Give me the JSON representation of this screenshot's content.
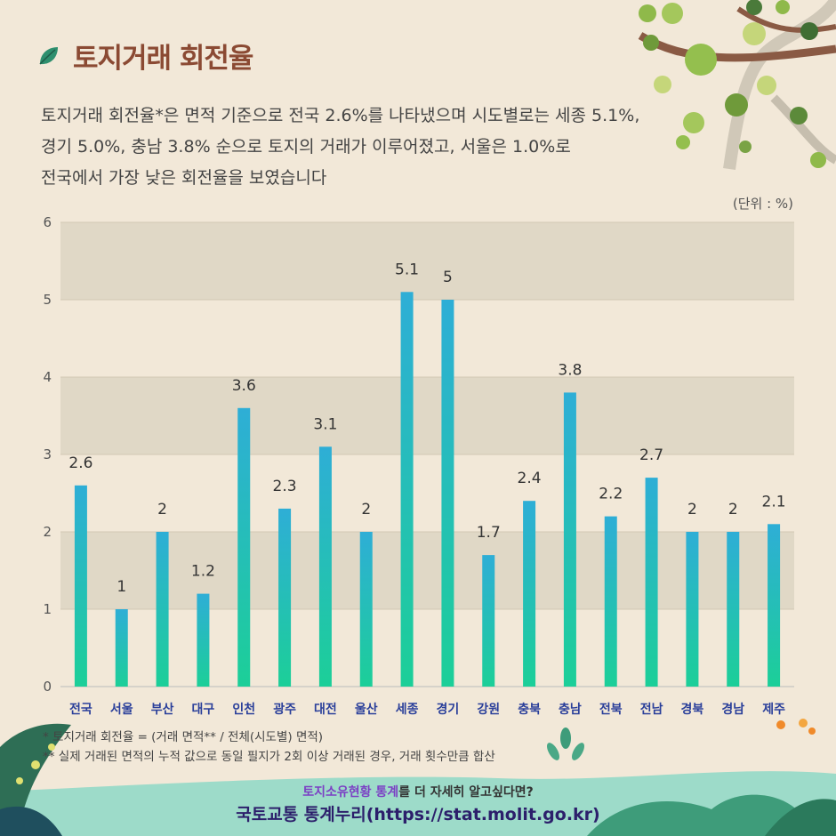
{
  "title": "토지거래 회전율",
  "description": [
    "토지거래 회전율*은 면적 기준으로 전국 2.6%를 나타냈으며 시도별로는 세종 5.1%,",
    "경기 5.0%, 충남 3.8% 순으로 토지의 거래가 이루어졌고, 서울은 1.0%로",
    "전국에서 가장 낮은 회전율을 보였습니다"
  ],
  "unit_label": "(단위 : %)",
  "notes": {
    "note1": "* 토지거래 회전율 = (거래 면적** / 전체(시도별) 면적)",
    "note2": "** 실제 거래된 면적의 누적 값으로 동일 필지가 2회 이상 거래된 경우, 거래 횟수만큼 합산"
  },
  "footer": {
    "line1_highlight": "토지소유현황 통계",
    "line1_rest": "를 더 자세히 알고싶다면?",
    "line2": "국토교통 통계누리(https://stat.molit.go.kr)"
  },
  "colors": {
    "title": "#8b4a33",
    "bar_top": "#2eaed6",
    "bar_bottom": "#1ccf98",
    "category_label": "#2a3f9a",
    "band_dark": "#e0d8c6",
    "background": "#f2e8d8"
  },
  "chart_data": {
    "type": "bar",
    "categories": [
      "전국",
      "서울",
      "부산",
      "대구",
      "인천",
      "광주",
      "대전",
      "울산",
      "세종",
      "경기",
      "강원",
      "충북",
      "충남",
      "전북",
      "전남",
      "경북",
      "경남",
      "제주"
    ],
    "values": [
      2.6,
      1,
      2,
      1.2,
      3.6,
      2.3,
      3.1,
      2,
      5.1,
      5,
      1.7,
      2.4,
      3.8,
      2.2,
      2.7,
      2,
      2,
      2.1
    ],
    "value_labels": [
      "2.6",
      "1",
      "2",
      "1.2",
      "3.6",
      "2.3",
      "3.1",
      "2",
      "5.1",
      "5",
      "1.7",
      "2.4",
      "3.8",
      "2.2",
      "2.7",
      "2",
      "2",
      "2.1"
    ],
    "ylim": [
      0,
      6
    ],
    "yticks": [
      "0",
      "1",
      "2",
      "3",
      "4",
      "5",
      "6"
    ],
    "grid": true,
    "legend": "none",
    "data_labels": true
  }
}
